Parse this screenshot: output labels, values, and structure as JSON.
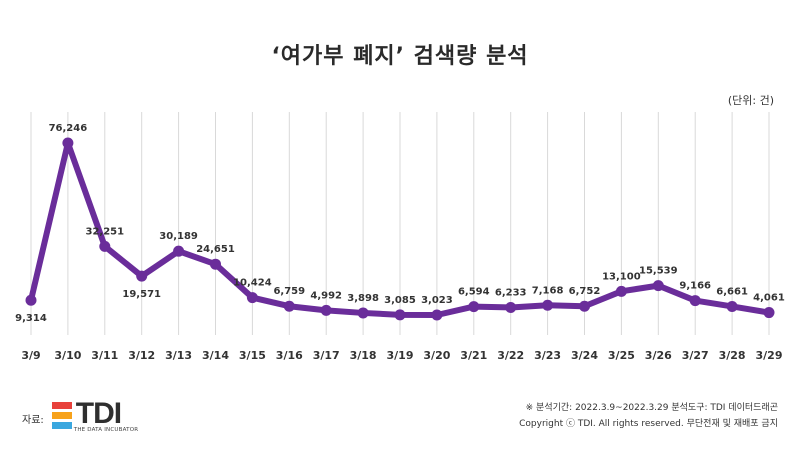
{
  "title": "‘여가부 폐지’ 검색량 분석",
  "unit_label": "(단위: 건)",
  "footer": {
    "source_label": "자료:",
    "logo": {
      "text": "TDI",
      "subtitle": "THE DATA INCUBATOR",
      "colors": [
        "#e8413b",
        "#f7a21b",
        "#3aa7df"
      ]
    },
    "period_line": "※ 분석기간: 2022.3.9~2022.3.29   분석도구: TDI 데이터드래곤",
    "copyright_line": "Copyright ⓒ TDI. All rights reserved. 무단전재 및 재배포 금지"
  },
  "colors": {
    "line": "#6a2d9a",
    "grid": "#d9d9d9",
    "label": "#333333"
  },
  "chart_data": {
    "type": "line",
    "title": "‘여가부 폐지’ 검색량 분석",
    "xlabel": "",
    "ylabel": "",
    "grid": "vertical",
    "categories": [
      "3/9",
      "3/10",
      "3/11",
      "3/12",
      "3/13",
      "3/14",
      "3/15",
      "3/16",
      "3/17",
      "3/18",
      "3/19",
      "3/20",
      "3/21",
      "3/22",
      "3/23",
      "3/24",
      "3/25",
      "3/26",
      "3/27",
      "3/28",
      "3/29"
    ],
    "values": [
      9314,
      76246,
      32251,
      19571,
      30189,
      24651,
      10424,
      6759,
      4992,
      3898,
      3085,
      3023,
      6594,
      6233,
      7168,
      6752,
      13100,
      15539,
      9166,
      6661,
      4061
    ],
    "value_labels": [
      "9,314",
      "76,246",
      "32,251",
      "19,571",
      "30,189",
      "24,651",
      "10,424",
      "6,759",
      "4,992",
      "3,898",
      "3,085",
      "3,023",
      "6,594",
      "6,233",
      "7,168",
      "6,752",
      "13,100",
      "15,539",
      "9,166",
      "6,661",
      "4,061"
    ]
  }
}
